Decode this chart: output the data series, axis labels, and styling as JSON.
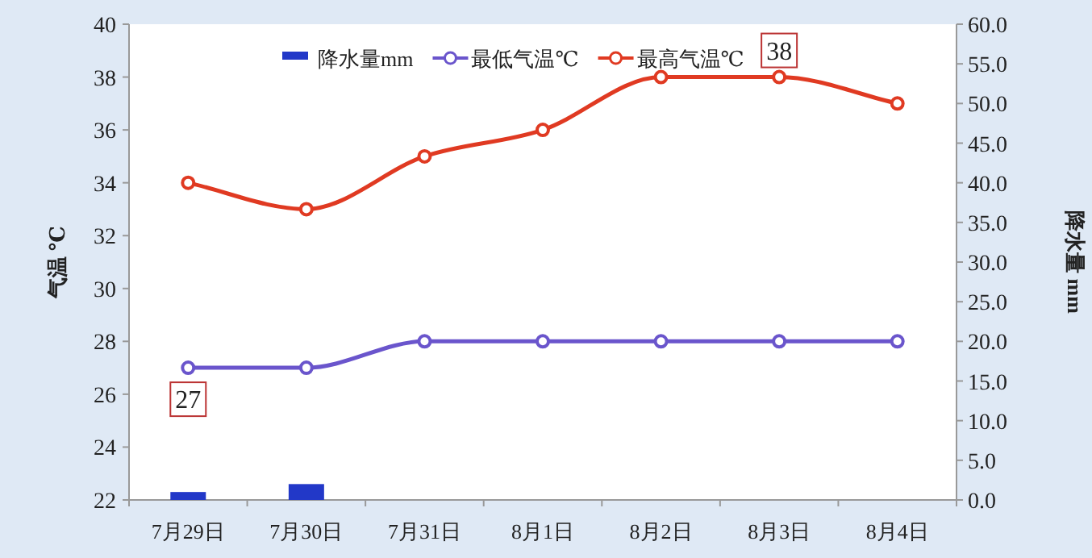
{
  "chart_data": {
    "type": "line",
    "ylabel": "气温 ℃",
    "y2label": "降水量 mm",
    "categories": [
      "7月29日",
      "7月30日",
      "7月31日",
      "8月1日",
      "8月2日",
      "8月3日",
      "8月4日"
    ],
    "series": [
      {
        "name": "降水量mm",
        "type": "bar",
        "axis": "y2",
        "color": "#2238c8",
        "values": [
          1.0,
          2.0,
          0,
          0,
          0,
          0,
          0
        ]
      },
      {
        "name": "最低气温℃",
        "color": "#6a55cc",
        "values": [
          27,
          27,
          28,
          28,
          28,
          28,
          28
        ]
      },
      {
        "name": "最高气温℃",
        "color": "#e03a22",
        "values": [
          34,
          33,
          35,
          36,
          38,
          38,
          37
        ]
      }
    ],
    "ylim": [
      22,
      40
    ],
    "yticks": [
      22,
      24,
      26,
      28,
      30,
      32,
      34,
      36,
      38,
      40
    ],
    "y2lim": [
      0,
      60
    ],
    "y2ticks": [
      {
        "value": 0,
        "label": "0.0"
      },
      {
        "value": 5,
        "label": "5.0"
      },
      {
        "value": 10,
        "label": "10.0"
      },
      {
        "value": 15,
        "label": "15.0"
      },
      {
        "value": 20,
        "label": "20.0"
      },
      {
        "value": 25,
        "label": "25.0"
      },
      {
        "value": 30,
        "label": "30.0"
      },
      {
        "value": 35,
        "label": "35.0"
      },
      {
        "value": 40,
        "label": "40.0"
      },
      {
        "value": 45,
        "label": "45.0"
      },
      {
        "value": 50,
        "label": "50.0"
      },
      {
        "value": 55,
        "label": "55.0"
      },
      {
        "value": 60,
        "label": "60.0"
      }
    ],
    "annotations": [
      {
        "text": "27",
        "x": "7月29日",
        "y": 27
      },
      {
        "text": "38",
        "x": "8月3日",
        "y": 38
      }
    ],
    "legend": "top",
    "marker": "circle",
    "line_style": "solid",
    "grid": false
  }
}
